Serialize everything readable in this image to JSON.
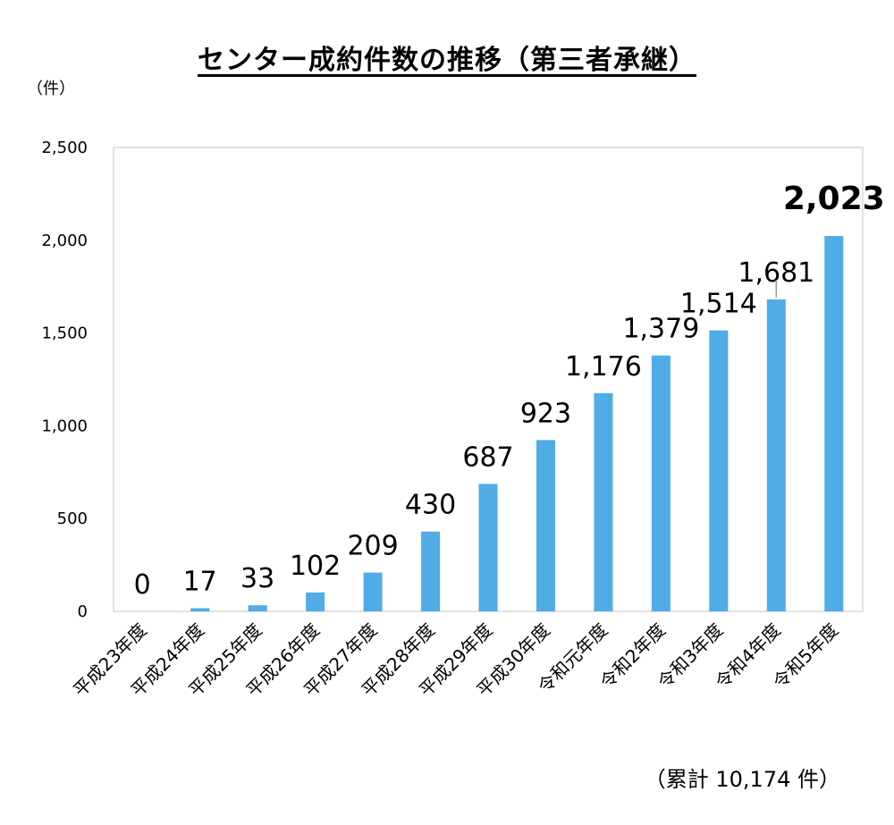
{
  "chart_data": {
    "type": "bar",
    "title": "センター成約件数の推移（第三者承継）",
    "y_unit_label": "（件）",
    "categories": [
      "平成23年度",
      "平成24年度",
      "平成25年度",
      "平成26年度",
      "平成27年度",
      "平成28年度",
      "平成29年度",
      "平成30年度",
      "令和元年度",
      "令和2年度",
      "令和3年度",
      "令和4年度",
      "令和5年度"
    ],
    "values": [
      0,
      17,
      33,
      102,
      209,
      430,
      687,
      923,
      1176,
      1379,
      1514,
      1681,
      2023
    ],
    "data_labels": [
      "0",
      "17",
      "33",
      "102",
      "209",
      "430",
      "687",
      "923",
      "1,176",
      "1,379",
      "1,514",
      "1,681",
      "2,023"
    ],
    "y_ticks": [
      "0",
      "500",
      "1,000",
      "1,500",
      "2,000",
      "2,500"
    ],
    "ylim": [
      0,
      2500
    ],
    "grid": false,
    "bar_color": "#4FACE6",
    "total_note": "（累計 10,174 件）"
  }
}
